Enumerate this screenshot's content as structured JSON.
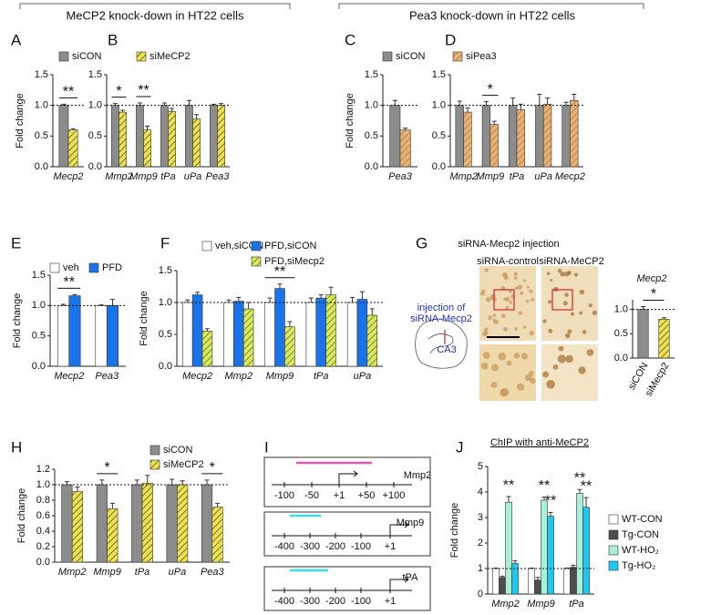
{
  "headers": [
    "MeCP2 knock-down in HT22 cells",
    "Pea3 knock-down in HT22 cells"
  ],
  "chart_data": [
    {
      "type": "bar",
      "panel": "A",
      "y_label": "Fold change",
      "categories": [
        "Mecp2"
      ],
      "ylim": [
        0,
        1.5
      ],
      "yticks": [
        {
          "value": 0,
          "label": "0.0"
        },
        {
          "value": 0.5,
          "label": "0.5"
        },
        {
          "value": 1,
          "label": "1.0"
        },
        {
          "value": 1.5,
          "label": "1.5"
        }
      ],
      "reference_line": 1,
      "series": [
        {
          "color": "#8c8c8c",
          "values": [
            1.0
          ],
          "errors": [
            0.02
          ]
        },
        {
          "color": "#f0e442",
          "hatch": "#6b6b6b",
          "values": [
            0.6
          ],
          "errors": [
            0.02
          ],
          "significance": [
            "**"
          ]
        }
      ]
    },
    {
      "type": "bar",
      "panel": "B",
      "categories": [
        "Mmp2",
        "Mmp9",
        "tPa",
        "uPa",
        "Pea3"
      ],
      "ylim": [
        0,
        1.5
      ],
      "yticks": [
        {
          "value": 0,
          "label": "0.0"
        },
        {
          "value": 0.5,
          "label": "0.5"
        },
        {
          "value": 1,
          "label": "1.0"
        },
        {
          "value": 1.5,
          "label": "1.5"
        }
      ],
      "reference_line": 1,
      "series": [
        {
          "name": "siCON",
          "color": "#8c8c8c",
          "values": [
            1,
            1,
            1,
            1,
            1
          ],
          "errors": [
            0.03,
            0.04,
            0.04,
            0.08,
            0.02
          ]
        },
        {
          "name": "siMeCP2",
          "color": "#f0e442",
          "hatch": "#6b6b6b",
          "values": [
            0.89,
            0.6,
            0.9,
            0.78,
            1.0
          ],
          "errors": [
            0.03,
            0.06,
            0.05,
            0.07,
            0.03
          ],
          "significance": [
            "*",
            "**",
            null,
            null,
            null
          ]
        }
      ]
    },
    {
      "type": "bar",
      "panel": "C",
      "y_label": "Fold change",
      "categories": [
        "Pea3"
      ],
      "ylim": [
        0,
        1.5
      ],
      "yticks": [
        {
          "value": 0,
          "label": "0.0"
        },
        {
          "value": 0.5,
          "label": "0.5"
        },
        {
          "value": 1,
          "label": "1.0"
        },
        {
          "value": 1.5,
          "label": "1.5"
        }
      ],
      "reference_line": 1,
      "series": [
        {
          "color": "#8c8c8c",
          "values": [
            1.0
          ],
          "errors": [
            0.08
          ]
        },
        {
          "color": "#e2b47c",
          "hatch": "#d27f2c",
          "values": [
            0.6
          ],
          "errors": [
            0.03
          ]
        }
      ]
    },
    {
      "type": "bar",
      "panel": "D",
      "categories": [
        "Mmp2",
        "Mmp9",
        "tPa",
        "uPa",
        "Mecp2"
      ],
      "ylim": [
        0,
        1.5
      ],
      "yticks": [
        {
          "value": 0,
          "label": "0.0"
        },
        {
          "value": 0.5,
          "label": "0.5"
        },
        {
          "value": 1,
          "label": "1.0"
        },
        {
          "value": 1.5,
          "label": "1.5"
        }
      ],
      "reference_line": 1,
      "series": [
        {
          "name": "siCON",
          "color": "#8c8c8c",
          "values": [
            1,
            1,
            1,
            1,
            1
          ],
          "errors": [
            0.07,
            0.06,
            0.12,
            0.18,
            0.05
          ]
        },
        {
          "name": "siPea3",
          "color": "#e2b47c",
          "hatch": "#d27f2c",
          "values": [
            0.89,
            0.69,
            0.93,
            1.02,
            1.08
          ],
          "errors": [
            0.07,
            0.05,
            0.09,
            0.1,
            0.1
          ],
          "significance": [
            null,
            "*",
            null,
            null,
            null
          ]
        }
      ]
    },
    {
      "type": "bar",
      "panel": "E",
      "y_label": "Fold change",
      "categories": [
        "Mecp2",
        "Pea3"
      ],
      "ylim": [
        0,
        1.5
      ],
      "yticks": [
        {
          "value": 0,
          "label": "0.0"
        },
        {
          "value": 0.5,
          "label": "0.5"
        },
        {
          "value": 1,
          "label": "1.0"
        },
        {
          "value": 1.5,
          "label": "1.5"
        }
      ],
      "reference_line": 1,
      "series": [
        {
          "name": "veh",
          "color": "#ffffff",
          "values": [
            1,
            1
          ],
          "errors": [
            0.02,
            0.01
          ]
        },
        {
          "name": "PFD",
          "color": "#1a73e8",
          "values": [
            1.16,
            1.0
          ],
          "errors": [
            0.02,
            0.1
          ],
          "significance": [
            "**",
            null
          ]
        }
      ]
    },
    {
      "type": "bar",
      "panel": "F",
      "y_label": "Fold change",
      "categories": [
        "Mecp2",
        "Mmp2",
        "Mmp9",
        "tPa",
        "uPa"
      ],
      "ylim": [
        0,
        1.5
      ],
      "yticks": [
        {
          "value": 0,
          "label": "0.0"
        },
        {
          "value": 0.5,
          "label": "0.5"
        },
        {
          "value": 1,
          "label": "1.0"
        },
        {
          "value": 1.5,
          "label": "1.5"
        }
      ],
      "reference_line": 1,
      "series": [
        {
          "name": "veh,siCON",
          "color": "#ffffff",
          "values": [
            1,
            1,
            1,
            1,
            1
          ],
          "errors": [
            0.04,
            0.04,
            0.07,
            0.07,
            0.08
          ]
        },
        {
          "name": "PFD,siCON",
          "color": "#1a73e8",
          "values": [
            1.12,
            1.02,
            1.22,
            1.07,
            1.05
          ],
          "errors": [
            0.04,
            0.06,
            0.07,
            0.05,
            0.12
          ]
        },
        {
          "name": "PFD,siMecp2",
          "color": "#f0e442",
          "hatch": "#2a9d9d",
          "values": [
            0.55,
            0.9,
            0.62,
            1.12,
            0.8
          ],
          "errors": [
            0.04,
            0.1,
            0.08,
            0.12,
            0.1
          ],
          "significance": [
            null,
            null,
            "**",
            null,
            null
          ]
        }
      ]
    },
    {
      "type": "bar",
      "title": "Mecp2",
      "rotate_labels": true,
      "categories": [
        "siCON",
        "siMecp2"
      ],
      "ylim": [
        0,
        1.2
      ],
      "yticks": [
        {
          "value": 0,
          "label": "0.0"
        },
        {
          "value": 0.5,
          "label": "0.5"
        },
        {
          "value": 1,
          "label": "1.0"
        }
      ],
      "reference_line": 1,
      "values": [
        1.0,
        0.8
      ],
      "errors": [
        0.06,
        0.03
      ],
      "colors": [
        "#8c8c8c",
        "#f0e442"
      ],
      "hatches": [
        null,
        "#6b6b6b"
      ],
      "significance": "*"
    },
    {
      "type": "bar",
      "panel": "H",
      "y_label": "Fold change",
      "categories": [
        "Mmp2",
        "Mmp9",
        "tPa",
        "uPa",
        "Pea3"
      ],
      "ylim": [
        0,
        1.2
      ],
      "yticks": [
        {
          "value": 0,
          "label": "0.0"
        },
        {
          "value": 0.2,
          "label": "0.2"
        },
        {
          "value": 0.4,
          "label": "0.4"
        },
        {
          "value": 0.6,
          "label": "0.6"
        },
        {
          "value": 0.8,
          "label": "0.8"
        },
        {
          "value": 1,
          "label": "1.0"
        },
        {
          "value": 1.2,
          "label": "1.2"
        }
      ],
      "reference_line": 1,
      "series": [
        {
          "name": "siCON",
          "color": "#8c8c8c",
          "values": [
            1,
            1,
            1,
            1,
            1
          ],
          "errors": [
            0.04,
            0.06,
            0.06,
            0.07,
            0.06
          ]
        },
        {
          "name": "siMeCP2",
          "color": "#f0e442",
          "hatch": "#6b6b6b",
          "values": [
            0.91,
            0.69,
            1.02,
            1.0,
            0.71
          ],
          "errors": [
            0.06,
            0.07,
            0.1,
            0.05,
            0.05
          ],
          "significance": [
            null,
            "*",
            null,
            null,
            "*"
          ]
        }
      ]
    },
    {
      "type": "bar",
      "panel": "J",
      "title": "ChIP with anti-MeCP2",
      "y_label": "Fold change",
      "categories": [
        "Mmp2",
        "Mmp9",
        "tPa"
      ],
      "ylim": [
        0,
        5
      ],
      "yticks": [
        0,
        1,
        2,
        3,
        4,
        5
      ],
      "reference_line": 1,
      "series": [
        {
          "name": "WT-CON",
          "color": "#ffffff",
          "values": [
            1,
            1,
            1
          ],
          "errors": [
            0.02,
            0.02,
            0.02
          ]
        },
        {
          "name": "Tg-CON",
          "color": "#4d4d4d",
          "values": [
            0.65,
            0.55,
            1.05
          ],
          "errors": [
            0.05,
            0.1,
            0.08
          ]
        },
        {
          "name": "WT-HO₂",
          "color": "#a8f0d8",
          "values": [
            3.6,
            3.68,
            3.95
          ],
          "errors": [
            0.22,
            0.12,
            0.15
          ],
          "significance": [
            "**",
            "**",
            "**"
          ]
        },
        {
          "name": "Tg-HO₂",
          "color": "#1ec8f0",
          "values": [
            1.2,
            3.05,
            3.4
          ],
          "errors": [
            0.1,
            0.15,
            0.38
          ],
          "significance": [
            null,
            "**",
            "**"
          ]
        }
      ]
    }
  ],
  "injection_panel": {
    "panel": "G",
    "title": "siRNA-Mecp2 injection",
    "image_labels": [
      "siRNA-control",
      "siRNA-MeCP2"
    ],
    "annotation": [
      "injection of",
      "siRNA-Mecp2"
    ],
    "region": "CA3"
  },
  "promoter_panel": {
    "panel": "I",
    "diagrams": [
      {
        "gene": "Mmp2",
        "ticks": [
          "-100",
          "-50",
          "+1",
          "+50",
          "+100"
        ]
      },
      {
        "gene": "Mmp9",
        "ticks": [
          "-400",
          "-300",
          "-200",
          "-100",
          "+1"
        ]
      },
      {
        "gene": "tPA",
        "ticks": [
          "-400",
          "-300",
          "-200",
          "-100",
          "+1"
        ]
      }
    ]
  }
}
